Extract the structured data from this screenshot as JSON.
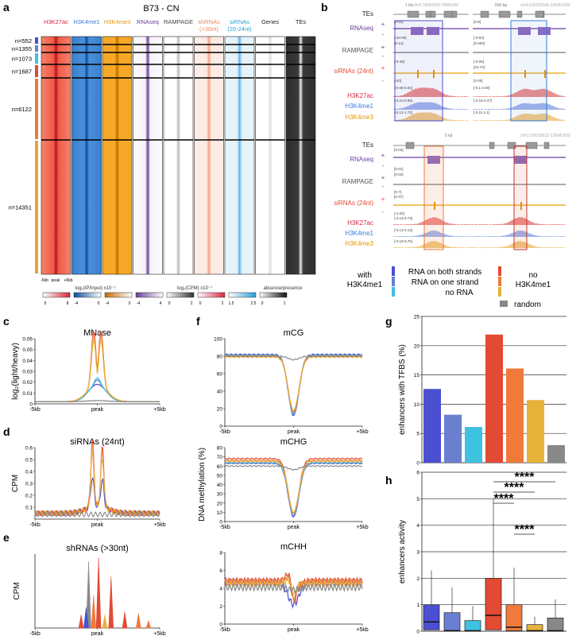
{
  "panels": {
    "a": "a",
    "b": "b",
    "c": "c",
    "d": "d",
    "e": "e",
    "f": "f",
    "g": "g",
    "h": "h"
  },
  "heatmap": {
    "title": "B73 - CN",
    "columns": [
      {
        "label": "H3K27ac",
        "label2": "",
        "color": "#d7263d"
      },
      {
        "label": "H3K4me1",
        "label2": "",
        "color": "#3a7bd5"
      },
      {
        "label": "H3K4me3",
        "label2": "",
        "color": "#e69500"
      },
      {
        "label": "RNAseq",
        "label2": "",
        "color": "#6a3d9a"
      },
      {
        "label": "RAMPAGE",
        "label2": "",
        "color": "#444444"
      },
      {
        "label": "shRNAs",
        "label2": "(>30nt)",
        "color": "#f08a5d"
      },
      {
        "label": "siRNAs",
        "label2": "(20-24nt)",
        "color": "#2a9fd6"
      },
      {
        "label": "Genes",
        "label2": "",
        "color": "#222222"
      },
      {
        "label": "TEs",
        "label2": "",
        "color": "#222222"
      }
    ],
    "groups": [
      {
        "n": "n=552",
        "color": "#4b4fd1"
      },
      {
        "n": "n=1355",
        "color": "#6a7fd0"
      },
      {
        "n": "n=1073",
        "color": "#3fc1e0"
      },
      {
        "n": "n=1687",
        "color": "#e34a33"
      },
      {
        "n": "n=6122",
        "color": "#f07a3a"
      },
      {
        "n": "n=14351",
        "color": "#e7a23a"
      }
    ],
    "xticks": [
      "-5kb",
      "peak",
      "+5kb"
    ],
    "scale_label_1": "log₂(IP/input) x10⁻¹",
    "scale_label_2": "log₂(CPM) x10⁻¹",
    "scale_label_3": "absence/presence",
    "scales": [
      {
        "min": "0",
        "max": "8"
      },
      {
        "min": "-4",
        "max": "0"
      },
      {
        "min": "-4",
        "max": "0"
      },
      {
        "min": "-4",
        "max": "4"
      },
      {
        "min": "0",
        "max": "2"
      },
      {
        "min": "0",
        "max": "2"
      },
      {
        "min": "1.5",
        "max": "2.5"
      },
      {
        "min": "0",
        "max": "1"
      }
    ]
  },
  "browser": {
    "track_labels": [
      "TEs",
      "RNAseq",
      "RAMPAGE",
      "siRNAs (24nt)",
      "H3K27ac",
      "H3K4me1",
      "H3K4me3"
    ],
    "coords": [
      "chr8:74060200-74066090",
      "chr9:106255046-105051006",
      "chr5:126039612-126041635"
    ],
    "scalebars": [
      "1 kb",
      "500 bp",
      "5 kb"
    ],
    "ranges_left": [
      "[0-92]",
      "[-40-00]",
      "[0-14]",
      "[-0-48]",
      "[-20]",
      "[-0.08-0.94]",
      "[-0.10-0.88]",
      "[-0.12-1.72]"
    ],
    "ranges_right": [
      "[0-8]",
      "[-0-82]",
      "[0-000]",
      "[-0-05]",
      "[44-72]",
      "[2-00]",
      "[-0.1-4.00]",
      "[-0.16-0.37]",
      "[-0.11-1.1]"
    ],
    "ranges_bottom": [
      "[0-03]",
      "[0-01]",
      "[0-04]",
      "[0-7]",
      "[0-37]",
      "[-1.00]",
      "[-0.13-0.73]",
      "[-0.13-0.13]",
      "[-0.19-0.75]"
    ]
  },
  "legend": {
    "with_label": "with",
    "with_label2": "H3K4me1",
    "with_items": [
      {
        "label": "RNA on both strands",
        "color": "#4b4fd1"
      },
      {
        "label": "RNA on one strand",
        "color": "#6a7fd0"
      },
      {
        "label": "no RNA",
        "color": "#3fc1e0"
      }
    ],
    "no_label": "no",
    "no_label2": "H3K4me1",
    "no_items": [
      {
        "label": "",
        "color": "#e34a33"
      },
      {
        "label": "",
        "color": "#f07a3a"
      },
      {
        "label": "",
        "color": "#e7b23a"
      }
    ],
    "random_label": "random",
    "random_color": "#888888"
  },
  "chart_data": [
    {
      "id": "c",
      "type": "line",
      "title": "MNase",
      "ylabel": "log₂(light/heavy)",
      "xlabel": "",
      "xticks": [
        "-5kb",
        "peak",
        "+5kb"
      ],
      "x": [
        -5,
        5
      ],
      "ylim": [
        0,
        0.06
      ],
      "yticks": [
        "0",
        "0.01",
        "0.02",
        "0.03",
        "0.04",
        "0.05",
        "0.06"
      ],
      "series": [
        {
          "name": "RNA on both strands",
          "peak": 0.018,
          "base": 0.002,
          "shape": "dip2"
        },
        {
          "name": "RNA on one strand",
          "peak": 0.022,
          "base": 0.002,
          "shape": "dip2"
        },
        {
          "name": "no RNA",
          "peak": 0.024,
          "base": 0.002,
          "shape": "dip2"
        },
        {
          "name": "no H3K4me1 1",
          "peak": 0.052,
          "base": 0.002,
          "shape": "double"
        },
        {
          "name": "no H3K4me1 2",
          "peak": 0.049,
          "base": 0.002,
          "shape": "double"
        },
        {
          "name": "no H3K4me1 3",
          "peak": 0.044,
          "base": 0.002,
          "shape": "double"
        },
        {
          "name": "random",
          "peak": 0.003,
          "base": 0.002,
          "shape": "flat"
        }
      ]
    },
    {
      "id": "d",
      "type": "line",
      "title": "siRNAs (24nt)",
      "ylabel": "CPM",
      "xlabel": "",
      "xticks": [
        "-5kb",
        "peak",
        "+5kb"
      ],
      "x": [
        -5,
        5
      ],
      "ylim": [
        0,
        0.6
      ],
      "yticks": [
        "0.1",
        "0.2",
        "0.3",
        "0.4",
        "0.5",
        "0.6"
      ],
      "series": [
        {
          "name": "RNA on both strands",
          "peak": 0.3,
          "base": 0.05,
          "shape": "double"
        },
        {
          "name": "no H3K4me1 1",
          "peak": 0.6,
          "base": 0.05,
          "shape": "double"
        },
        {
          "name": "no H3K4me1 2",
          "peak": 0.56,
          "base": 0.05,
          "shape": "double"
        },
        {
          "name": "no H3K4me1 3",
          "peak": 0.5,
          "base": 0.05,
          "shape": "double"
        },
        {
          "name": "random",
          "peak": 0.05,
          "base": 0.04,
          "shape": "flat"
        }
      ]
    },
    {
      "id": "e",
      "type": "line",
      "title": "shRNAs (>30nt)",
      "ylabel": "CPM",
      "xlabel": "",
      "xticks": [
        "-5kb",
        "peak",
        "+5kb"
      ],
      "x": [
        -5,
        5
      ],
      "ylim": [
        0,
        1
      ],
      "spikes": [
        {
          "x": -0.7,
          "h": 0.9,
          "series": "random"
        },
        {
          "x": 0.1,
          "h": 0.95,
          "series": "no H3K4me1 1"
        },
        {
          "x": 1.1,
          "h": 0.7,
          "series": "no H3K4me1 1"
        },
        {
          "x": -1.3,
          "h": 0.18,
          "series": "no H3K4me1 1"
        },
        {
          "x": -0.3,
          "h": 0.45,
          "series": "no H3K4me1 2"
        },
        {
          "x": 2.2,
          "h": 0.22,
          "series": "no H3K4me1 1"
        },
        {
          "x": 3.3,
          "h": 0.2,
          "series": "no H3K4me1 2"
        },
        {
          "x": -0.9,
          "h": 0.28,
          "series": "RNA on both strands"
        },
        {
          "x": 0.6,
          "h": 0.18,
          "series": "no H3K4me1 3"
        },
        {
          "x": 4.1,
          "h": 0.1,
          "series": "no H3K4me1 2"
        }
      ]
    },
    {
      "id": "f1",
      "type": "line",
      "title": "mCG",
      "ylabel": "",
      "xlabel": "",
      "xticks": [
        "-5kb",
        "peak",
        "+5kb"
      ],
      "x": [
        -5,
        5
      ],
      "ylim": [
        0,
        100
      ],
      "yticks": [
        "0",
        "20",
        "40",
        "60",
        "80",
        "100"
      ],
      "series": [
        {
          "name": "RNA on both strands",
          "base": 82,
          "dip": 12
        },
        {
          "name": "RNA on one strand",
          "base": 81,
          "dip": 13
        },
        {
          "name": "no RNA",
          "base": 81,
          "dip": 14
        },
        {
          "name": "no H3K4me1 1",
          "base": 80,
          "dip": 16
        },
        {
          "name": "no H3K4me1 2",
          "base": 80,
          "dip": 17
        },
        {
          "name": "no H3K4me1 3",
          "base": 79,
          "dip": 18
        },
        {
          "name": "random",
          "base": 80,
          "dip": 76
        }
      ]
    },
    {
      "id": "f2",
      "type": "line",
      "title": "mCHG",
      "ylabel": "DNA methylation (%)",
      "xlabel": "",
      "xticks": [
        "-5kb",
        "peak",
        "+5kb"
      ],
      "x": [
        -5,
        5
      ],
      "ylim": [
        0,
        80
      ],
      "yticks": [
        "0",
        "10",
        "20",
        "30",
        "40",
        "50",
        "60",
        "70",
        "80"
      ],
      "series": [
        {
          "name": "RNA on both strands",
          "base": 63,
          "dip": 5
        },
        {
          "name": "RNA on one strand",
          "base": 63,
          "dip": 6
        },
        {
          "name": "no RNA",
          "base": 64,
          "dip": 8
        },
        {
          "name": "no H3K4me1 1",
          "base": 68,
          "dip": 9
        },
        {
          "name": "no H3K4me1 2",
          "base": 66,
          "dip": 9
        },
        {
          "name": "no H3K4me1 3",
          "base": 65,
          "dip": 10
        },
        {
          "name": "random",
          "base": 60,
          "dip": 56
        }
      ]
    },
    {
      "id": "f3",
      "type": "line",
      "title": "mCHH",
      "ylabel": "",
      "xlabel": "",
      "xticks": [
        "-5kb",
        "peak",
        "+5kb"
      ],
      "x": [
        -5,
        5
      ],
      "ylim": [
        0,
        8
      ],
      "yticks": [
        "0",
        "2",
        "4",
        "6",
        "8"
      ],
      "series": [
        {
          "name": "RNA on both strands",
          "base": 4.6,
          "dip": 2.2,
          "bump": 0
        },
        {
          "name": "no H3K4me1 1",
          "base": 4.8,
          "dip": 3.3,
          "bump": 2.5
        },
        {
          "name": "no H3K4me1 2",
          "base": 4.7,
          "dip": 3.5,
          "bump": 2.0
        },
        {
          "name": "no H3K4me1 3",
          "base": 4.5,
          "dip": 3.8,
          "bump": 1.4
        },
        {
          "name": "random",
          "base": 4.1,
          "dip": 3.8,
          "bump": 0
        }
      ]
    },
    {
      "id": "g",
      "type": "bar",
      "title": "",
      "ylabel": "enhancers with TFBS (%)",
      "xlabel": "",
      "ylim": [
        0,
        25
      ],
      "yticks": [
        "0",
        "5",
        "10",
        "15",
        "20",
        "25"
      ],
      "categories": [
        "RNA on both strands",
        "RNA on one strand",
        "no RNA",
        "no H3K4me1 1",
        "no H3K4me1 2",
        "no H3K4me1 3",
        "random"
      ],
      "values": [
        12.6,
        8.2,
        6.1,
        21.9,
        16.1,
        10.7,
        3.0
      ]
    },
    {
      "id": "h",
      "type": "box",
      "title": "",
      "ylabel": "enhancers activity",
      "xlabel": "",
      "ylim": [
        0,
        6
      ],
      "yticks": [
        "0",
        "1",
        "2",
        "3",
        "4",
        "5",
        "6"
      ],
      "categories": [
        "RNA on both strands",
        "RNA on one strand",
        "no RNA",
        "no H3K4me1 1",
        "no H3K4me1 2",
        "no H3K4me1 3",
        "random"
      ],
      "boxes": [
        {
          "q1": 0.05,
          "med": 0.35,
          "q3": 1.0,
          "whisker": 2.3
        },
        {
          "q1": 0.02,
          "med": 0.02,
          "q3": 0.7,
          "whisker": 1.65
        },
        {
          "q1": 0.0,
          "med": 0.02,
          "q3": 0.4,
          "whisker": 0.95
        },
        {
          "q1": 0.05,
          "med": 0.6,
          "q3": 2.0,
          "whisker": 5.0
        },
        {
          "q1": 0.02,
          "med": 0.15,
          "q3": 1.0,
          "whisker": 2.4
        },
        {
          "q1": 0.0,
          "med": 0.02,
          "q3": 0.25,
          "whisker": 0.55
        },
        {
          "q1": 0.0,
          "med": 0.02,
          "q3": 0.5,
          "whisker": 1.2
        }
      ],
      "significance": [
        {
          "label": "****",
          "from": 3,
          "to": 6
        },
        {
          "label": "****",
          "from": 3,
          "to": 5
        },
        {
          "label": "****",
          "from": 3,
          "to": 4
        },
        {
          "label": "****",
          "from": 4,
          "to": 5
        }
      ]
    }
  ],
  "colors": {
    "series": [
      "#4b4fd1",
      "#6a7fd0",
      "#3fc1e0",
      "#e34a33",
      "#f07a3a",
      "#e7b23a",
      "#888888"
    ],
    "seriesNames": [
      "RNA on both strands",
      "RNA on one strand",
      "no RNA",
      "no H3K4me1 1",
      "no H3K4me1 2",
      "no H3K4me1 3",
      "random"
    ]
  }
}
